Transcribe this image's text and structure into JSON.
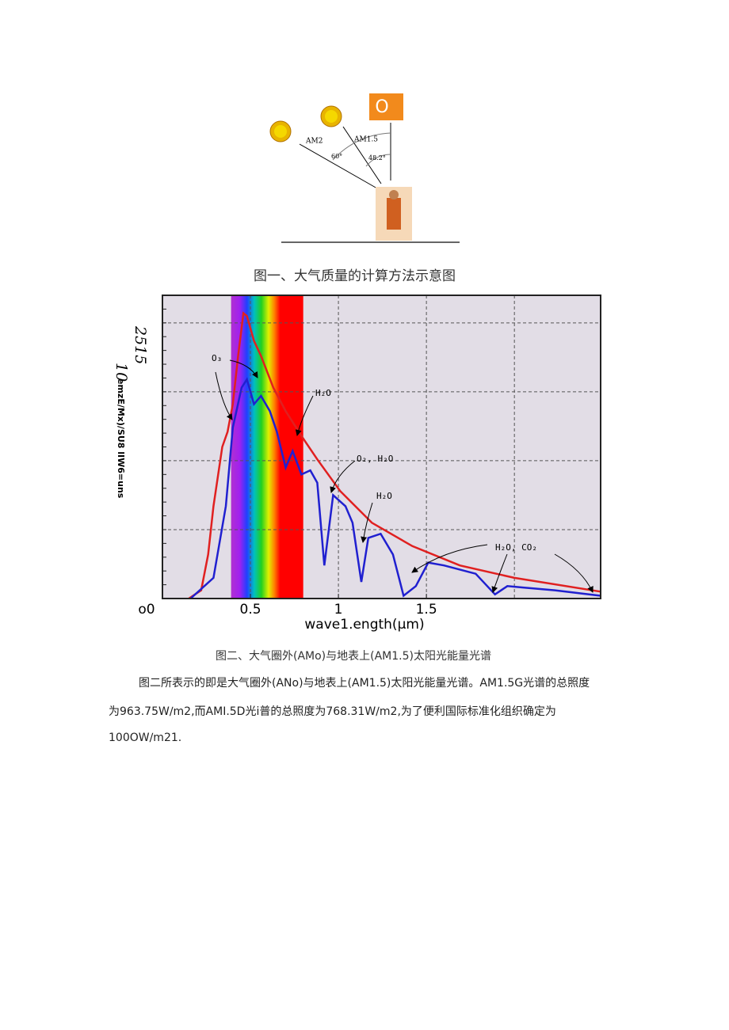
{
  "figure1": {
    "badge": "O",
    "labels": [
      "AM2",
      "AM1.5",
      "60°",
      "48.2°"
    ],
    "caption": "图一、大气质量的计算方法示意图"
  },
  "chart_data": {
    "type": "line",
    "xlabel": "wave1.ength(μm)",
    "ylabel": "emzE/Mx)/SU8 lIW6=uns",
    "ylabel_marks": [
      "2515",
      "10"
    ],
    "xlim": [
      0,
      2.49
    ],
    "ylim": [
      0,
      2.2
    ],
    "xticks": [
      {
        "value": 0,
        "label": "o0"
      },
      0.5,
      1,
      1.5
    ],
    "xgrid": [
      0.5,
      1,
      1.5,
      2
    ],
    "ygrid": [
      0.5,
      1,
      1.5,
      2
    ],
    "grid": true,
    "spectrum_band": [
      0.39,
      0.8
    ],
    "annotations": [
      "O₃",
      "H₂O",
      "O₂, H₂O",
      "H₂O",
      "H₂O, CO₂"
    ],
    "series": [
      {
        "color": "#e02020",
        "x": [
          0.15,
          0.22,
          0.26,
          0.29,
          0.34,
          0.37,
          0.4,
          0.43,
          0.46,
          0.48,
          0.52,
          0.56,
          0.63,
          0.7,
          0.79,
          0.88,
          1.01,
          1.19,
          1.42,
          1.69,
          2.0,
          2.49
        ],
        "values": [
          0,
          0.06,
          0.32,
          0.67,
          1.1,
          1.21,
          1.41,
          1.76,
          2.07,
          2.05,
          1.87,
          1.76,
          1.53,
          1.36,
          1.18,
          1.01,
          0.78,
          0.55,
          0.38,
          0.24,
          0.15,
          0.05
        ]
      },
      {
        "color": "#2020d0",
        "x": [
          0.16,
          0.29,
          0.36,
          0.4,
          0.45,
          0.48,
          0.52,
          0.56,
          0.61,
          0.65,
          0.7,
          0.74,
          0.79,
          0.84,
          0.88,
          0.92,
          0.97,
          1.04,
          1.08,
          1.13,
          1.17,
          1.24,
          1.31,
          1.37,
          1.44,
          1.51,
          1.6,
          1.78,
          1.89,
          1.96,
          2.05,
          2.23,
          2.49
        ],
        "values": [
          0,
          0.15,
          0.67,
          1.24,
          1.53,
          1.59,
          1.41,
          1.47,
          1.36,
          1.21,
          0.95,
          1.07,
          0.9,
          0.93,
          0.84,
          0.24,
          0.75,
          0.67,
          0.55,
          0.12,
          0.44,
          0.47,
          0.32,
          0.02,
          0.09,
          0.26,
          0.24,
          0.18,
          0.03,
          0.09,
          0.08,
          0.06,
          0.02
        ]
      }
    ]
  },
  "caption2": "图二、大气圈外(AMo)与地表上(AM1.5)太阳光能量光谱",
  "paragraph": [
    "图二所表示的即是大气圈外(ANo)与地表上(AM1.5)太阳光能量光谱。AM1.5G光谱的总照度",
    "为963.75W∕m2,而AMI.5D光i普的总照度为768.31W∕m2,为了便利国际标准化组织确定为",
    "100OW∕m21."
  ]
}
